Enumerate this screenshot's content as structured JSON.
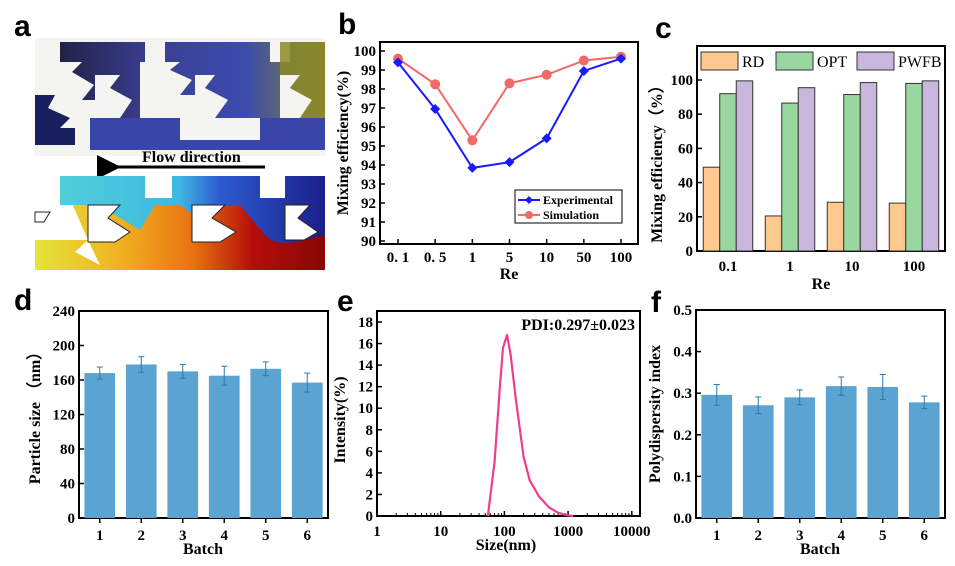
{
  "panels": {
    "a": {
      "letter": "a",
      "annotation": "Flow direction",
      "images": [
        "experimental-micrograph",
        "simulation-concentration-map"
      ]
    },
    "b": {
      "letter": "b"
    },
    "c": {
      "letter": "c"
    },
    "d": {
      "letter": "d"
    },
    "e": {
      "letter": "e"
    },
    "f": {
      "letter": "f"
    }
  },
  "chart_data": [
    {
      "id": "b",
      "type": "line",
      "title": "",
      "xlabel": "Re",
      "ylabel": "Mixing efficiency(%)",
      "categories": [
        "0. 1",
        "0. 5",
        "1",
        "5",
        "10",
        "50",
        "100"
      ],
      "ylim": [
        90,
        100
      ],
      "yticks": [
        90,
        91,
        92,
        93,
        94,
        95,
        96,
        97,
        98,
        99,
        100
      ],
      "legend_position": "bottom-right",
      "series": [
        {
          "name": "Experimental",
          "color": "#1a1aff",
          "marker": "diamond",
          "values": [
            99.4,
            96.95,
            93.85,
            94.15,
            95.4,
            98.95,
            99.6
          ]
        },
        {
          "name": "Simulation",
          "color": "#f06a6a",
          "marker": "circle",
          "values": [
            99.6,
            98.25,
            95.3,
            98.3,
            98.75,
            99.5,
            99.7
          ]
        }
      ]
    },
    {
      "id": "c",
      "type": "bar",
      "title": "",
      "xlabel": "Re",
      "ylabel": "Mixing efficiency（%）",
      "categories": [
        "0.1",
        "1",
        "10",
        "100"
      ],
      "ylim": [
        0,
        115
      ],
      "yticks": [
        0,
        20,
        40,
        60,
        80,
        100
      ],
      "legend_position": "top",
      "series": [
        {
          "name": "RD",
          "color": "#fdc98f",
          "values": [
            49,
            20.5,
            28.5,
            28
          ]
        },
        {
          "name": "OPT",
          "color": "#9ad7a0",
          "values": [
            92,
            86.5,
            91.5,
            98
          ]
        },
        {
          "name": "PWFB",
          "color": "#c8b6dc",
          "values": [
            99.5,
            95.5,
            98.5,
            99.5
          ]
        }
      ]
    },
    {
      "id": "d",
      "type": "bar",
      "title": "",
      "xlabel": "Batch",
      "ylabel": "Particle size （nm）",
      "categories": [
        "1",
        "2",
        "3",
        "4",
        "5",
        "6"
      ],
      "ylim": [
        0,
        240
      ],
      "yticks": [
        0,
        40,
        80,
        120,
        160,
        200,
        240
      ],
      "color": "#5ba3d0",
      "values": [
        168,
        178,
        170,
        165,
        173,
        157
      ],
      "errors": [
        7,
        9,
        8,
        11,
        8,
        11
      ]
    },
    {
      "id": "e",
      "type": "line",
      "title": "",
      "xlabel": "Size(nm)",
      "ylabel": "Intensity(%)",
      "xscale": "log",
      "xlim": [
        1,
        10000
      ],
      "xticks": [
        "1",
        "10",
        "100",
        "1000",
        "10000"
      ],
      "ylim": [
        0,
        18.5
      ],
      "yticks": [
        0,
        2,
        4,
        6,
        8,
        10,
        12,
        14,
        16,
        18
      ],
      "annotation": "PDI:0.297±0.023",
      "series": [
        {
          "name": "Intensity",
          "color": "#ee3d8f",
          "x": [
            55,
            70,
            85,
            95,
            110,
            125,
            150,
            200,
            250,
            350,
            500,
            700,
            1000,
            1200
          ],
          "y": [
            0,
            5,
            12,
            15.6,
            16.8,
            15,
            11,
            5.5,
            3.3,
            1.8,
            0.8,
            0.3,
            0.05,
            0
          ]
        }
      ]
    },
    {
      "id": "f",
      "type": "bar",
      "title": "",
      "xlabel": "Batch",
      "ylabel": "Polydispersity index",
      "categories": [
        "1",
        "2",
        "3",
        "4",
        "5",
        "6"
      ],
      "ylim": [
        0,
        0.5
      ],
      "yticks": [
        "0.0",
        "0.1",
        "0.2",
        "0.3",
        "0.4",
        "0.5"
      ],
      "color": "#5ba3d0",
      "values": [
        0.296,
        0.271,
        0.29,
        0.317,
        0.315,
        0.278
      ],
      "errors": [
        0.025,
        0.02,
        0.018,
        0.022,
        0.03,
        0.015
      ]
    }
  ]
}
